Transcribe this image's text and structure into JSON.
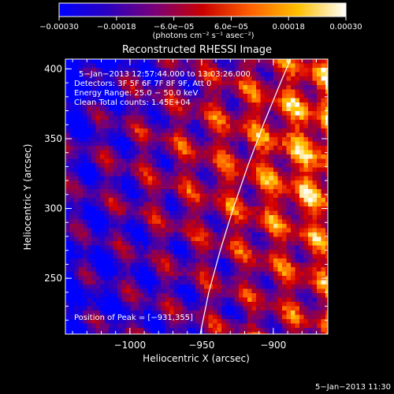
{
  "chart_data": {
    "type": "heatmap",
    "title": "Reconstructed RHESSI Image",
    "xlabel": "Heliocentric X (arcsec)",
    "ylabel": "Heliocentric Y (arcsec)",
    "xlim": [
      -1045,
      -862
    ],
    "ylim": [
      210,
      407
    ],
    "x_ticks": [
      -1000,
      -950,
      -900
    ],
    "x_tick_labels": [
      "−1000",
      "−950",
      "−900"
    ],
    "y_ticks": [
      250,
      300,
      350,
      400
    ],
    "y_tick_labels": [
      "250",
      "300",
      "350",
      "400"
    ],
    "colorbar": {
      "range": [
        -0.0003,
        0.0003
      ],
      "ticks": [
        -0.0003,
        -0.00018,
        -6e-05,
        6e-05,
        0.00018,
        0.0003
      ],
      "tick_labels": [
        "−0.00030",
        "−0.00018",
        "−6.0e−05",
        "6.0e−05",
        "0.00018",
        "0.00030"
      ],
      "units_label": "(photons cm⁻² s⁻¹ asec⁻²)",
      "colors": [
        "#0000ff",
        "#2a00c0",
        "#7a0078",
        "#c80000",
        "#ff6000",
        "#ffc000",
        "#ffffff"
      ]
    },
    "annotations": [
      "5−Jan−2013 12:57:44.000 to 13:03:26.000",
      "Detectors: 3F 5F 6F 7F 8F 9F, Att 0",
      "Energy Range: 25.0 − 50.0 keV",
      "Clean     Total counts: 1.45E+04"
    ],
    "peak_label": "Position of Peak = [−931,355]",
    "limb_curve": [
      [
        -951,
        210
      ],
      [
        -945,
        240
      ],
      [
        -937,
        270
      ],
      [
        -928,
        300
      ],
      [
        -918,
        330
      ],
      [
        -907,
        360
      ],
      [
        -895,
        390
      ],
      [
        -888,
        407
      ]
    ],
    "timestamp": "5−Jan−2013 11:30"
  }
}
